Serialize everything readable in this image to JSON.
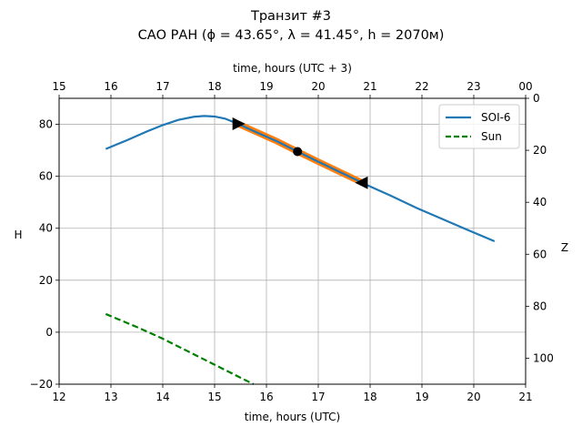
{
  "chart_data": {
    "type": "line",
    "title_line1": "Транзит #3",
    "title_line2": "САО РАН (ϕ = 43.65°, λ = 41.45°, h = 2070м)",
    "xlabel_bottom": "time, hours (UTC)",
    "xlabel_top": "time, hours (UTC + 3)",
    "ylabel_left": "H",
    "ylabel_right": "Z",
    "xlim": [
      12,
      21
    ],
    "ylim": [
      -20,
      90
    ],
    "xticks": [
      12,
      13,
      14,
      15,
      16,
      17,
      18,
      19,
      20,
      21
    ],
    "yticks": [
      -20,
      0,
      20,
      40,
      60,
      80
    ],
    "top_ticks": [
      "15",
      "16",
      "17",
      "18",
      "19",
      "20",
      "21",
      "22",
      "23",
      "00"
    ],
    "right_ticks": [
      0,
      20,
      40,
      60,
      80,
      100
    ],
    "grid": true,
    "legend_position": "top-right",
    "series": [
      {
        "name": "SOI-6",
        "color": "#1f77b4",
        "style": "solid",
        "x": [
          12.9,
          13.3,
          13.7,
          14.0,
          14.3,
          14.6,
          14.8,
          15.0,
          15.2,
          15.45,
          15.8,
          16.2,
          16.6,
          17.0,
          17.4,
          17.9,
          18.4,
          18.9,
          19.4,
          19.9,
          20.4
        ],
        "y": [
          70.5,
          73.8,
          77.3,
          79.7,
          81.7,
          82.9,
          83.2,
          83.0,
          82.2,
          80.2,
          77.0,
          73.5,
          69.5,
          65.6,
          61.8,
          57.0,
          52.5,
          47.8,
          43.5,
          39.2,
          35.0
        ]
      },
      {
        "name": "Sun",
        "color": "#008000",
        "style": "dashed",
        "x": [
          12.9,
          13.5,
          14.0,
          14.5,
          15.0,
          15.5,
          15.75
        ],
        "y": [
          7.0,
          2.0,
          -2.5,
          -7.5,
          -12.5,
          -17.5,
          -20.0
        ]
      }
    ],
    "highlight": {
      "color": "#ff7f0e",
      "x": [
        15.45,
        16.2,
        16.6,
        17.0,
        17.4,
        17.85
      ],
      "y": [
        80.2,
        73.5,
        69.5,
        65.6,
        61.8,
        57.5
      ],
      "start": {
        "x": 15.45,
        "y": 80.2,
        "marker": "triangle-right"
      },
      "middle": {
        "x": 16.6,
        "y": 69.5,
        "marker": "circle"
      },
      "end": {
        "x": 17.85,
        "y": 57.5,
        "marker": "triangle-left"
      }
    }
  }
}
